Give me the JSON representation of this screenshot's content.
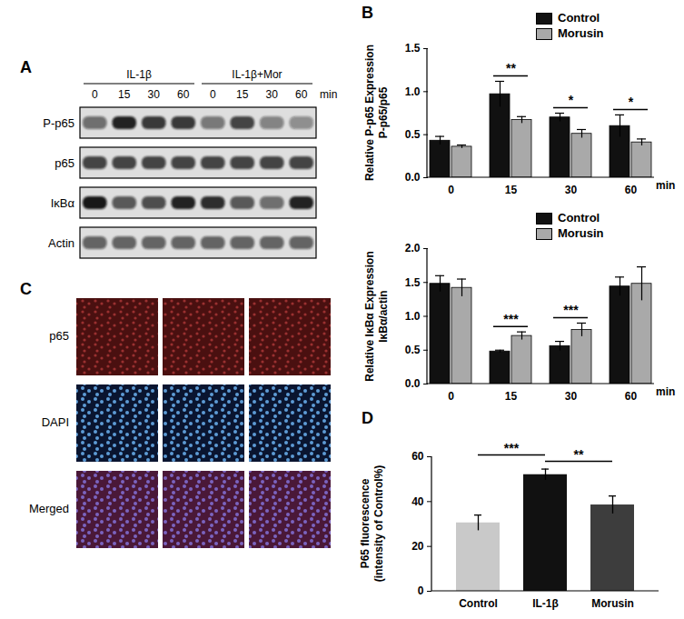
{
  "panels": [
    "A",
    "B",
    "C",
    "D"
  ],
  "blot": {
    "groups": [
      {
        "label": "IL-1β",
        "times": [
          "0",
          "15",
          "30",
          "60"
        ]
      },
      {
        "label": "IL-1β+Mor",
        "times": [
          "0",
          "15",
          "30",
          "60"
        ]
      }
    ],
    "unit": "min",
    "rows": [
      {
        "label": "P-p65",
        "bands": [
          0.55,
          0.9,
          0.8,
          0.8,
          0.5,
          0.75,
          0.45,
          0.4
        ]
      },
      {
        "label": "p65",
        "bands": [
          0.75,
          0.75,
          0.75,
          0.75,
          0.75,
          0.75,
          0.75,
          0.75
        ]
      },
      {
        "label": "IκBα",
        "bands": [
          0.95,
          0.65,
          0.7,
          0.9,
          0.85,
          0.65,
          0.55,
          0.9
        ]
      },
      {
        "label": "Actin",
        "bands": [
          0.6,
          0.6,
          0.6,
          0.6,
          0.6,
          0.6,
          0.6,
          0.6
        ]
      }
    ]
  },
  "micrographs": {
    "rows": [
      "p65",
      "DAPI",
      "Merged"
    ]
  },
  "chart_data": [
    {
      "type": "bar",
      "y_label": "Relative P-p65 Expression\nP-p65/p65",
      "x_label": "min",
      "categories": [
        "0",
        "15",
        "30",
        "60"
      ],
      "series": [
        {
          "name": "Control",
          "color": "#111111",
          "values": [
            0.43,
            0.97,
            0.7,
            0.6
          ],
          "errors": [
            0.05,
            0.15,
            0.05,
            0.13
          ]
        },
        {
          "name": "Morusin",
          "color": "#a9a9a9",
          "values": [
            0.36,
            0.67,
            0.51,
            0.41
          ],
          "errors": [
            0.02,
            0.04,
            0.05,
            0.04
          ]
        }
      ],
      "ylim": [
        0,
        1.5
      ],
      "yticks": [
        {
          "value": 0,
          "label": "0.0"
        },
        {
          "value": 0.5,
          "label": "0.5"
        },
        {
          "value": 1,
          "label": "1.0"
        },
        {
          "value": 1.5,
          "label": "1.5"
        }
      ],
      "legend": "top-right",
      "annotations": [
        {
          "text": "**",
          "category": "15"
        },
        {
          "text": "*",
          "category": "30"
        },
        {
          "text": "*",
          "category": "60"
        }
      ]
    },
    {
      "type": "bar",
      "y_label": "Relative IκBα Expression\nIκBα/actin",
      "x_label": "min",
      "categories": [
        "0",
        "15",
        "30",
        "60"
      ],
      "series": [
        {
          "name": "Control",
          "color": "#111111",
          "values": [
            1.48,
            0.48,
            0.56,
            1.44
          ],
          "errors": [
            0.12,
            0.02,
            0.07,
            0.14
          ]
        },
        {
          "name": "Morusin",
          "color": "#a9a9a9",
          "values": [
            1.42,
            0.71,
            0.8,
            1.48
          ],
          "errors": [
            0.13,
            0.06,
            0.1,
            0.25
          ]
        }
      ],
      "ylim": [
        0,
        2
      ],
      "yticks": [
        {
          "value": 0,
          "label": "0.0"
        },
        {
          "value": 0.5,
          "label": "0.5"
        },
        {
          "value": 1,
          "label": "1.0"
        },
        {
          "value": 1.5,
          "label": "1.5"
        },
        {
          "value": 2,
          "label": "2.0"
        }
      ],
      "legend": "top-right",
      "annotations": [
        {
          "text": "***",
          "category": "15"
        },
        {
          "text": "***",
          "category": "30"
        }
      ]
    },
    {
      "type": "bar",
      "y_label": "P65 fluorescence\n(intensity of Control%)",
      "categories": [
        "Control",
        "IL-1β",
        "Morusin"
      ],
      "values": [
        30.5,
        52,
        38.5
      ],
      "errors": [
        3.5,
        2.5,
        4
      ],
      "colors": [
        "#c9c9c9",
        "#111111",
        "#3d3d3d"
      ],
      "ylim": [
        0,
        60
      ],
      "yticks": [
        0,
        20,
        40,
        60
      ],
      "annotations": [
        {
          "text": "***",
          "from": "Control",
          "to": "IL-1β"
        },
        {
          "text": "**",
          "from": "IL-1β",
          "to": "Morusin"
        }
      ]
    }
  ]
}
